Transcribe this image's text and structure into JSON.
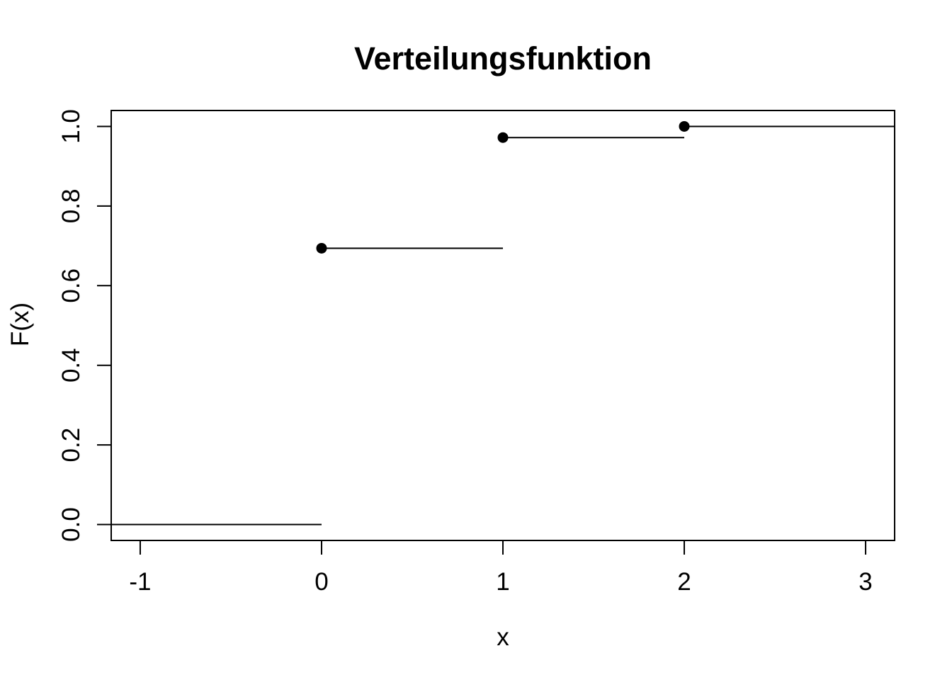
{
  "figure": {
    "background_color": "#ffffff",
    "ink_color": "#000000"
  },
  "chart_data": {
    "type": "line",
    "subtype": "step-function-cdf",
    "title": "Verteilungsfunktion",
    "xlabel": "x",
    "ylabel": "F(x)",
    "xlim": [
      -1.16,
      3.16
    ],
    "ylim": [
      -0.04,
      1.04
    ],
    "grid": false,
    "legend": "none",
    "x_ticks": [
      {
        "v": -1,
        "label": "-1"
      },
      {
        "v": 0,
        "label": "0"
      },
      {
        "v": 1,
        "label": "1"
      },
      {
        "v": 2,
        "label": "2"
      },
      {
        "v": 3,
        "label": "3"
      }
    ],
    "y_ticks": [
      {
        "v": 0.0,
        "label": "0.0"
      },
      {
        "v": 0.2,
        "label": "0.2"
      },
      {
        "v": 0.4,
        "label": "0.4"
      },
      {
        "v": 0.6,
        "label": "0.6"
      },
      {
        "v": 0.8,
        "label": "0.8"
      },
      {
        "v": 1.0,
        "label": "1.0"
      }
    ],
    "series": [
      {
        "name": "F(x)",
        "color": "#000000",
        "jump_x": [
          0,
          1,
          2
        ],
        "cdf_values": [
          0.694,
          0.972,
          1.0
        ],
        "segments": [
          {
            "x1": -1.16,
            "x2": 0,
            "y": 0.0
          },
          {
            "x1": 0,
            "x2": 1,
            "y": 0.694
          },
          {
            "x1": 1,
            "x2": 2,
            "y": 0.972
          },
          {
            "x1": 2,
            "x2": 3.16,
            "y": 1.0
          }
        ],
        "points": [
          {
            "x": 0,
            "y": 0.694
          },
          {
            "x": 1,
            "y": 0.972
          },
          {
            "x": 2,
            "y": 1.0
          }
        ]
      }
    ]
  }
}
